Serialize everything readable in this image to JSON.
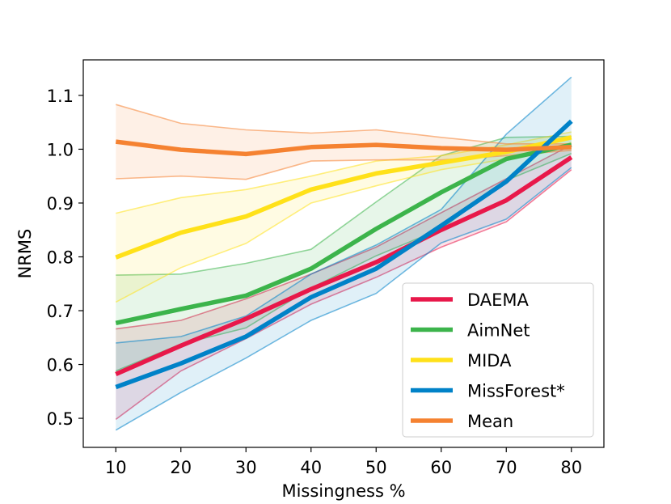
{
  "chart_data": {
    "type": "line",
    "title": "",
    "xlabel": "Missingness %",
    "ylabel": "NRMS",
    "x": [
      10,
      20,
      30,
      40,
      50,
      60,
      70,
      80
    ],
    "xlim": [
      5,
      85
    ],
    "ylim": [
      0.446,
      1.166
    ],
    "xticks": [
      "10",
      "20",
      "30",
      "40",
      "50",
      "60",
      "70",
      "80"
    ],
    "yticks": [
      "0.5",
      "0.6",
      "0.7",
      "0.8",
      "0.9",
      "1.0",
      "1.1"
    ],
    "legend_position": "lower-right",
    "series": [
      {
        "name": "DAEMA",
        "color": "#e8184a",
        "values": [
          0.582,
          0.635,
          0.685,
          0.74,
          0.79,
          0.85,
          0.905,
          0.985
        ],
        "lower": [
          0.498,
          0.588,
          0.648,
          0.712,
          0.762,
          0.818,
          0.865,
          0.962
        ],
        "upper": [
          0.666,
          0.682,
          0.722,
          0.768,
          0.818,
          0.882,
          0.945,
          1.008
        ]
      },
      {
        "name": "AimNet",
        "color": "#3cb44b",
        "values": [
          0.677,
          0.703,
          0.728,
          0.778,
          0.852,
          0.92,
          0.982,
          1.008
        ],
        "lower": [
          0.588,
          0.638,
          0.668,
          0.742,
          0.802,
          0.852,
          0.942,
          0.992
        ],
        "upper": [
          0.766,
          0.768,
          0.788,
          0.814,
          0.902,
          0.988,
          1.022,
          1.024
        ]
      },
      {
        "name": "MIDA",
        "color": "#ffe119",
        "values": [
          0.799,
          0.845,
          0.875,
          0.925,
          0.955,
          0.975,
          0.995,
          1.022
        ],
        "lower": [
          0.716,
          0.78,
          0.825,
          0.9,
          0.932,
          0.962,
          0.982,
          1.012
        ],
        "upper": [
          0.881,
          0.91,
          0.925,
          0.95,
          0.978,
          0.988,
          1.008,
          1.032
        ]
      },
      {
        "name": "MissForest*",
        "color": "#0082c8",
        "values": [
          0.558,
          0.602,
          0.652,
          0.725,
          0.778,
          0.858,
          0.94,
          1.052
        ],
        "lower": [
          0.478,
          0.548,
          0.612,
          0.682,
          0.732,
          0.826,
          0.87,
          0.966
        ],
        "upper": [
          0.64,
          0.652,
          0.69,
          0.768,
          0.822,
          0.888,
          1.028,
          1.134
        ]
      },
      {
        "name": "Mean",
        "color": "#f58231",
        "values": [
          1.014,
          0.999,
          0.991,
          1.004,
          1.008,
          1.002,
          0.999,
          1.004
        ],
        "lower": [
          0.945,
          0.95,
          0.944,
          0.978,
          0.98,
          0.98,
          0.988,
          0.998
        ],
        "upper": [
          1.083,
          1.048,
          1.036,
          1.03,
          1.036,
          1.022,
          1.01,
          1.01
        ]
      }
    ]
  }
}
